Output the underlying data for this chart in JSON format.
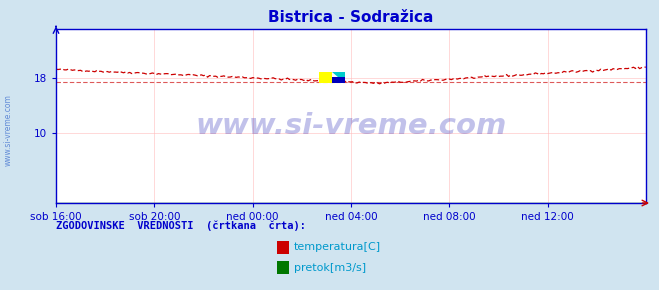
{
  "title": "Bistrica - Sodražica",
  "title_color": "#0000cc",
  "bg_color": "#d0e4f0",
  "plot_bg_color": "#ffffff",
  "axis_color": "#0000cc",
  "grid_color": "#ffbbbb",
  "tick_label_color": "#0000cc",
  "temp_color": "#cc0000",
  "pretok_color": "#007700",
  "hist_temp_value": 17.4,
  "xlim": [
    0,
    288
  ],
  "ylim": [
    0,
    25
  ],
  "yticks": [
    10,
    18
  ],
  "yticklabels": [
    "10",
    "18"
  ],
  "x_tick_pos": [
    0,
    48,
    96,
    144,
    192,
    240
  ],
  "x_tick_labels": [
    "sob 16:00",
    "sob 20:00",
    "ned 00:00",
    "ned 04:00",
    "ned 08:00",
    "ned 12:00"
  ],
  "watermark_text": "www.si-vreme.com",
  "watermark_color": "#3333bb",
  "watermark_alpha": 0.3,
  "legend_title": "ZGODOVINSKE  VREDNOSTI  (črtkana  črta):",
  "legend_label1": "temperatura[C]",
  "legend_label2": "pretok[m3/s]",
  "legend_text_color": "#0099cc",
  "legend_title_color": "#0000cc",
  "side_text": "www.si-vreme.com",
  "side_text_color": "#3366cc",
  "figsize": [
    6.59,
    2.9
  ],
  "dpi": 100
}
